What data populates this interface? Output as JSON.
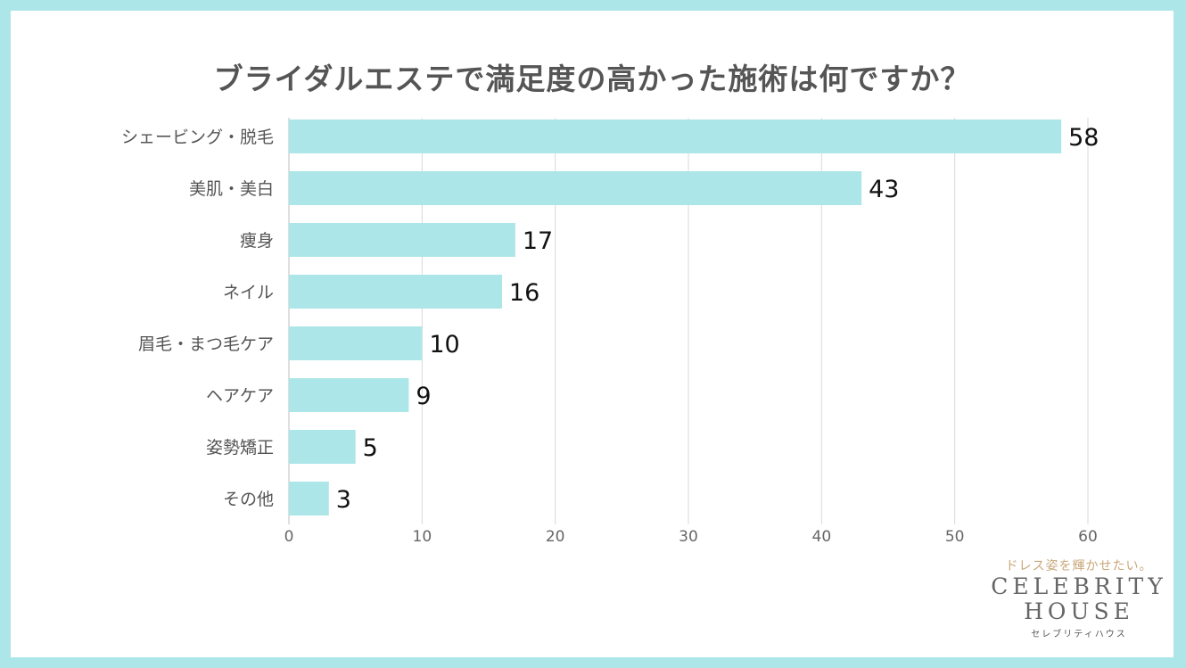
{
  "chart_data": {
    "type": "bar",
    "orientation": "horizontal",
    "title": "ブライダルエステで満足度の高かった施術は何ですか？",
    "categories": [
      "シェービング・脱毛",
      "美肌・美白",
      "痩身",
      "ネイル",
      "眉毛・まつ毛ケア",
      "ヘアケア",
      "姿勢矯正",
      "その他"
    ],
    "values": [
      58,
      43,
      17,
      16,
      10,
      9,
      5,
      3
    ],
    "xlim": [
      0,
      60
    ],
    "xticks": [
      0,
      10,
      20,
      30,
      40,
      50,
      60
    ],
    "grid": true,
    "bar_color": "#ace6e8"
  },
  "logo": {
    "tagline": "ドレス姿を輝かせたい。",
    "line1": "CELEBRITY",
    "line2": "HOUSE",
    "kana": "セレブリティハウス"
  },
  "colors": {
    "background": "#ace6e8",
    "card": "#ffffff",
    "grid": "#d9d9d9",
    "text": "#555555"
  }
}
